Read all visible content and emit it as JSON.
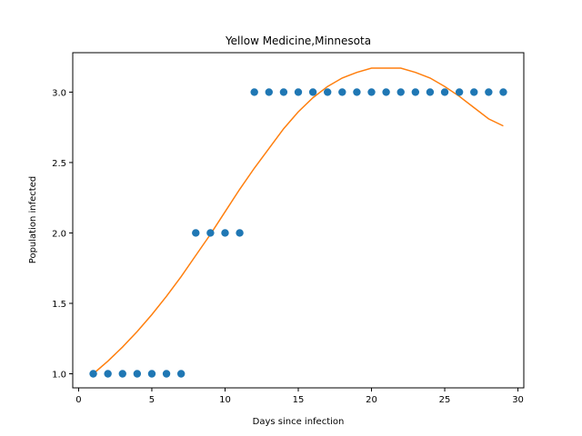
{
  "chart_data": {
    "type": "scatter",
    "title": "Yellow Medicine,Minnesota",
    "xlabel": "Days since infection",
    "ylabel": "Population infected",
    "xlim": [
      -0.4,
      30.4
    ],
    "ylim": [
      0.9,
      3.28
    ],
    "xticks": [
      0,
      5,
      10,
      15,
      20,
      25,
      30
    ],
    "xtick_labels": [
      "0",
      "5",
      "10",
      "15",
      "20",
      "25",
      "30"
    ],
    "yticks": [
      1.0,
      1.5,
      2.0,
      2.5,
      3.0
    ],
    "ytick_labels": [
      "1.0",
      "1.5",
      "2.0",
      "2.5",
      "3.0"
    ],
    "grid": false,
    "series": [
      {
        "kind": "scatter",
        "color": "#1f77b4",
        "x": [
          1,
          2,
          3,
          4,
          5,
          6,
          7,
          8,
          9,
          10,
          11,
          12,
          13,
          14,
          15,
          16,
          17,
          18,
          19,
          20,
          21,
          22,
          23,
          24,
          25,
          26,
          27,
          28,
          29
        ],
        "y": [
          1,
          1,
          1,
          1,
          1,
          1,
          1,
          2,
          2,
          2,
          2,
          3,
          3,
          3,
          3,
          3,
          3,
          3,
          3,
          3,
          3,
          3,
          3,
          3,
          3,
          3,
          3,
          3,
          3
        ]
      },
      {
        "kind": "line",
        "color": "#ff7f0e",
        "x": [
          1,
          2,
          3,
          4,
          5,
          6,
          7,
          8,
          9,
          10,
          11,
          12,
          13,
          14,
          15,
          16,
          17,
          18,
          19,
          20,
          21,
          22,
          23,
          24,
          25,
          26,
          27,
          28,
          29
        ],
        "y": [
          1.0,
          1.09,
          1.19,
          1.3,
          1.42,
          1.55,
          1.69,
          1.84,
          1.99,
          2.15,
          2.31,
          2.46,
          2.6,
          2.74,
          2.86,
          2.96,
          3.04,
          3.1,
          3.14,
          3.17,
          3.17,
          3.17,
          3.14,
          3.1,
          3.04,
          2.97,
          2.89,
          2.81,
          2.76
        ]
      }
    ]
  }
}
